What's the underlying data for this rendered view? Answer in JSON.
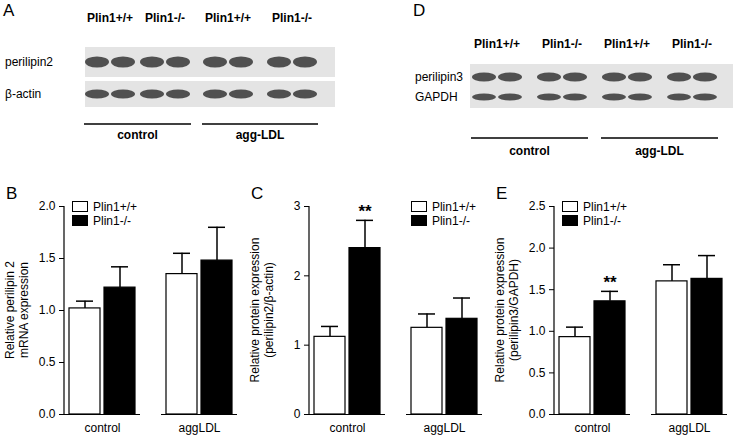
{
  "blots": [
    {
      "panel": "A",
      "lanes": [
        "Plin1+/+",
        "Plin1-/-",
        "Plin1+/+",
        "Plin1-/-"
      ],
      "rows": [
        "perilipin2",
        "β-actin"
      ],
      "groups": [
        "control",
        "agg-LDL"
      ]
    },
    {
      "panel": "D",
      "lanes": [
        "Plin1+/+",
        "Plin1-/-",
        "Plin1+/+",
        "Plin1-/-"
      ],
      "rows": [
        "perilipin3",
        "GAPDH"
      ],
      "groups": [
        "control",
        "agg-LDL"
      ]
    }
  ],
  "chart_data": [
    {
      "panel": "B",
      "type": "bar",
      "y_label": "Relative perilipin 2\nmRNA expression",
      "categories": [
        "control",
        "aggLDL"
      ],
      "series": [
        {
          "name": "Plin1+/+",
          "color": "#ffffff",
          "values": [
            1.02,
            1.35
          ],
          "errors": [
            0.07,
            0.2
          ]
        },
        {
          "name": "Plin1-/-",
          "color": "#000000",
          "values": [
            1.22,
            1.48
          ],
          "errors": [
            0.2,
            0.32
          ]
        }
      ],
      "ylim": [
        0,
        2
      ],
      "yticks": [
        {
          "value": 0,
          "label": "0.0"
        },
        {
          "value": 0.5,
          "label": "0.5"
        },
        {
          "value": 1,
          "label": "1.0"
        },
        {
          "value": 1.5,
          "label": "1.5"
        },
        {
          "value": 2,
          "label": "2.0"
        }
      ],
      "legend": "top-left"
    },
    {
      "panel": "C",
      "type": "bar",
      "y_label": "Relative protein expression\n(perilipin2/β-actin)",
      "categories": [
        "control",
        "aggLDL"
      ],
      "series": [
        {
          "name": "Plin1+/+",
          "color": "#ffffff",
          "values": [
            1.12,
            1.25
          ],
          "errors": [
            0.15,
            0.2
          ]
        },
        {
          "name": "Plin1-/-",
          "color": "#000000",
          "values": [
            2.4,
            1.38
          ],
          "errors": [
            0.4,
            0.3
          ]
        }
      ],
      "ylim": [
        0,
        3
      ],
      "yticks": [
        0,
        1,
        2,
        3
      ],
      "annotations": [
        {
          "category": "control",
          "series": "Plin1-/-",
          "text": "**"
        }
      ],
      "legend": "top-right"
    },
    {
      "panel": "E",
      "type": "bar",
      "y_label": "Relative protein expression\n(perilipin3/GAPDH)",
      "categories": [
        "control",
        "aggLDL"
      ],
      "series": [
        {
          "name": "Plin1+/+",
          "color": "#ffffff",
          "values": [
            0.93,
            1.6
          ],
          "errors": [
            0.12,
            0.2
          ]
        },
        {
          "name": "Plin1-/-",
          "color": "#000000",
          "values": [
            1.36,
            1.63
          ],
          "errors": [
            0.12,
            0.28
          ]
        }
      ],
      "ylim": [
        0,
        2.5
      ],
      "yticks": [
        {
          "value": 0,
          "label": "0.0"
        },
        {
          "value": 0.5,
          "label": "0.5"
        },
        {
          "value": 1,
          "label": "1.0"
        },
        {
          "value": 1.5,
          "label": "1.5"
        },
        {
          "value": 2,
          "label": "2.0"
        },
        {
          "value": 2.5,
          "label": "2.5"
        }
      ],
      "annotations": [
        {
          "category": "control",
          "series": "Plin1-/-",
          "text": "**"
        }
      ],
      "legend": "top-left"
    }
  ]
}
